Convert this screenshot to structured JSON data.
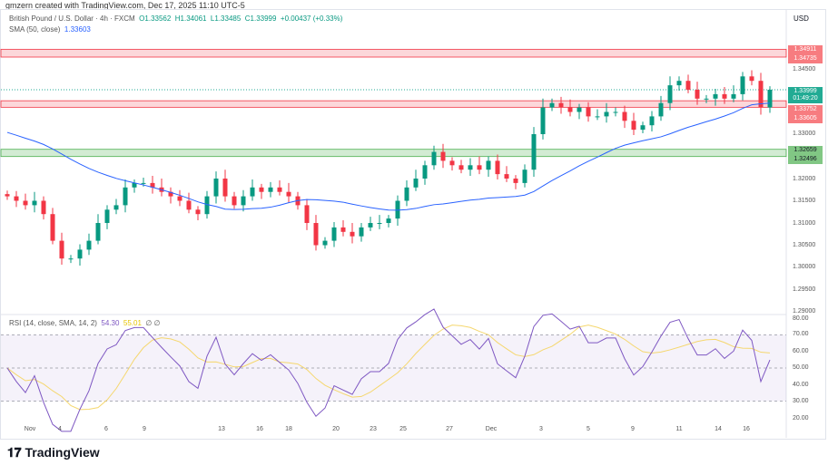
{
  "credit": "gmzern created with TradingView.com, Dec 17, 2025 11:10 UTC-5",
  "legend": {
    "symbol": "British Pound / U.S. Dollar · 4h · FXCM",
    "o": "O1.33562",
    "h": "H1.34061",
    "l": "L1.33485",
    "c": "C1.33999",
    "change": "+0.00437 (+0.33%)",
    "sma_label": "SMA (50, close)",
    "sma_value": "1.33603"
  },
  "rsi_legend": {
    "label": "RSI (14, close, SMA, 14, 2)",
    "rsi": "54.30",
    "sma": "55.01",
    "extra": "∅ ∅"
  },
  "currency": "USD",
  "price_ticks": [
    "1.34500",
    "1.33000",
    "1.32000",
    "1.31500",
    "1.31000",
    "1.30500",
    "1.30000",
    "1.29500",
    "1.29000"
  ],
  "rsi_ticks": [
    "80.00",
    "70.00",
    "60.00",
    "50.00",
    "40.00",
    "30.00",
    "20.00"
  ],
  "price_labels": {
    "zone1_top": "1.34911",
    "zone1_bottom": "1.34735",
    "current": "1.33999",
    "countdown": "01:49:20",
    "zone2_top": "1.33752",
    "zone2_bottom": "1.33605",
    "zone3_top": "1.32659",
    "zone3_bottom": "1.32496"
  },
  "x_labels": [
    "Nov",
    "4",
    "6",
    "9",
    "13",
    "16",
    "18",
    "20",
    "23",
    "25",
    "27",
    "Dec",
    "3",
    "5",
    "9",
    "11",
    "14",
    "16"
  ],
  "logo": "TradingView",
  "colors": {
    "up": "#089981",
    "down": "#f23645",
    "sma": "#2962ff",
    "rsi": "#7e57c2",
    "rsi_sma": "#f5d76e",
    "resistance": "#f23645",
    "support": "#089981"
  },
  "chart_data": {
    "type": "candlestick",
    "closes": [
      1.316,
      1.315,
      1.314,
      1.315,
      1.312,
      1.306,
      1.302,
      1.302,
      1.304,
      1.306,
      1.31,
      1.313,
      1.314,
      1.318,
      1.319,
      1.319,
      1.318,
      1.317,
      1.316,
      1.315,
      1.313,
      1.312,
      1.316,
      1.32,
      1.316,
      1.314,
      1.316,
      1.318,
      1.317,
      1.318,
      1.317,
      1.316,
      1.314,
      1.31,
      1.305,
      1.306,
      1.309,
      1.308,
      1.307,
      1.309,
      1.31,
      1.31,
      1.311,
      1.315,
      1.318,
      1.32,
      1.323,
      1.326,
      1.324,
      1.323,
      1.322,
      1.323,
      1.322,
      1.324,
      1.321,
      1.32,
      1.319,
      1.322,
      1.33,
      1.336,
      1.337,
      1.336,
      1.335,
      1.336,
      1.334,
      1.334,
      1.335,
      1.335,
      1.333,
      1.331,
      1.332,
      1.334,
      1.337,
      1.341,
      1.342,
      1.34,
      1.338,
      1.338,
      1.339,
      1.338,
      1.339,
      1.343,
      1.342,
      1.336,
      1.34
    ],
    "zones": [
      [
        1.34735,
        1.34911
      ],
      [
        1.33605,
        1.33752
      ],
      [
        1.32496,
        1.32659
      ]
    ],
    "ylim": [
      1.29,
      1.352
    ],
    "rsi_ylim": [
      20,
      80
    ]
  }
}
